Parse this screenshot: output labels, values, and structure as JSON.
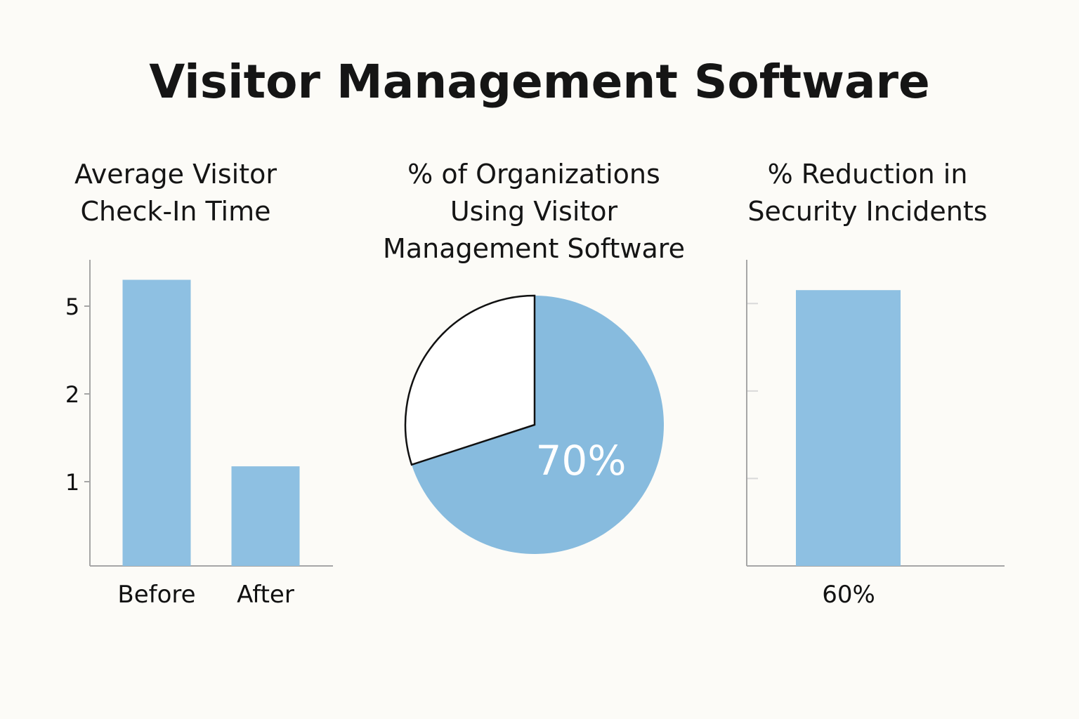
{
  "title": "Visitor Management Software",
  "colors": {
    "bar": "#8ec0e2",
    "pie_fill": "#87bbde",
    "pie_empty": "#ffffff",
    "axis": "#a6a6a6",
    "background": "#fcfbf7"
  },
  "chart_data": [
    {
      "type": "bar",
      "title": [
        "Average Visitor",
        "Check-In Time"
      ],
      "categories": [
        "Before",
        "After"
      ],
      "values": [
        5.6,
        1.35
      ],
      "yticks": [
        {
          "label": "5",
          "value": 5
        },
        {
          "label": "2",
          "value": 2
        },
        {
          "label": "1",
          "value": 1
        }
      ],
      "ylim": [
        0,
        6.1
      ],
      "xlabel": "",
      "ylabel": ""
    },
    {
      "type": "pie",
      "title": [
        "% of Organizations",
        "Using Visitor",
        "Management Software"
      ],
      "slices": [
        {
          "label": "70%",
          "value": 70,
          "filled": true
        },
        {
          "label": "",
          "value": 30,
          "filled": false
        }
      ]
    },
    {
      "type": "bar",
      "title": [
        "% Reduction in",
        "Security Incidents"
      ],
      "categories": [
        "60%"
      ],
      "values": [
        60
      ],
      "ylim": [
        0,
        75
      ],
      "ytick_count": 3,
      "xlabel": "",
      "ylabel": ""
    }
  ]
}
